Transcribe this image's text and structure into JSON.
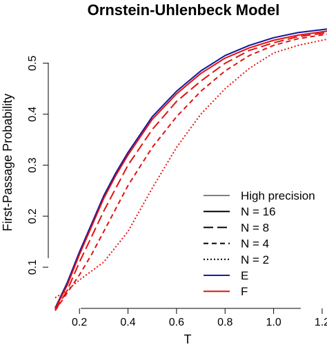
{
  "chart_data": {
    "type": "line",
    "title": "Ornstein-Uhlenbeck Model",
    "xlabel": "T",
    "ylabel": "First-Passage Probability",
    "xlim": [
      0.1,
      1.22
    ],
    "ylim": [
      0.03,
      0.57
    ],
    "x_ticks": [
      "0.2",
      "0.4",
      "0.6",
      "0.8",
      "1.0",
      "1.2"
    ],
    "y_ticks": [
      "0.1",
      "0.2",
      "0.3",
      "0.4",
      "0.5"
    ],
    "grid": false,
    "legend_position": "bottom-right",
    "legend": [
      {
        "label": "High precision",
        "color": "#808080",
        "dash": "solid"
      },
      {
        "label": "N = 16",
        "color": "#000000",
        "dash": "solid"
      },
      {
        "label": "N = 8",
        "color": "#000000",
        "dash": "longdash"
      },
      {
        "label": "N = 4",
        "color": "#000000",
        "dash": "dashed"
      },
      {
        "label": "N = 2",
        "color": "#000000",
        "dash": "dotted"
      },
      {
        "label": "E",
        "color": "#1a1aa0",
        "dash": "solid"
      },
      {
        "label": "F",
        "color": "#e01010",
        "dash": "solid"
      }
    ],
    "series": [
      {
        "color": "#808080",
        "dash": "solid",
        "points": [
          [
            0.1,
            0.02
          ],
          [
            0.15,
            0.07
          ],
          [
            0.2,
            0.13
          ],
          [
            0.25,
            0.185
          ],
          [
            0.3,
            0.24
          ],
          [
            0.35,
            0.285
          ],
          [
            0.4,
            0.325
          ],
          [
            0.5,
            0.395
          ],
          [
            0.6,
            0.445
          ],
          [
            0.7,
            0.485
          ],
          [
            0.8,
            0.515
          ],
          [
            0.9,
            0.535
          ],
          [
            1.0,
            0.55
          ],
          [
            1.1,
            0.56
          ],
          [
            1.22,
            0.567
          ]
        ]
      },
      {
        "color": "#1a1aa0",
        "dash": "solid",
        "points": [
          [
            0.1,
            0.02
          ],
          [
            0.15,
            0.07
          ],
          [
            0.2,
            0.13
          ],
          [
            0.25,
            0.185
          ],
          [
            0.3,
            0.24
          ],
          [
            0.35,
            0.285
          ],
          [
            0.4,
            0.325
          ],
          [
            0.5,
            0.395
          ],
          [
            0.6,
            0.445
          ],
          [
            0.7,
            0.485
          ],
          [
            0.8,
            0.515
          ],
          [
            0.9,
            0.535
          ],
          [
            1.0,
            0.55
          ],
          [
            1.1,
            0.56
          ],
          [
            1.22,
            0.567
          ]
        ]
      },
      {
        "color": "#e01010",
        "dash": "solid",
        "points": [
          [
            0.1,
            0.018
          ],
          [
            0.15,
            0.065
          ],
          [
            0.2,
            0.125
          ],
          [
            0.25,
            0.18
          ],
          [
            0.3,
            0.235
          ],
          [
            0.35,
            0.28
          ],
          [
            0.4,
            0.32
          ],
          [
            0.5,
            0.39
          ],
          [
            0.6,
            0.44
          ],
          [
            0.7,
            0.48
          ],
          [
            0.8,
            0.51
          ],
          [
            0.9,
            0.53
          ],
          [
            1.0,
            0.545
          ],
          [
            1.1,
            0.555
          ],
          [
            1.22,
            0.563
          ]
        ]
      },
      {
        "color": "#e01010",
        "dash": "longdash",
        "points": [
          [
            0.1,
            0.015
          ],
          [
            0.15,
            0.055
          ],
          [
            0.2,
            0.11
          ],
          [
            0.25,
            0.16
          ],
          [
            0.3,
            0.21
          ],
          [
            0.35,
            0.255
          ],
          [
            0.4,
            0.3
          ],
          [
            0.5,
            0.37
          ],
          [
            0.6,
            0.425
          ],
          [
            0.7,
            0.465
          ],
          [
            0.8,
            0.5
          ],
          [
            0.9,
            0.525
          ],
          [
            1.0,
            0.54
          ],
          [
            1.1,
            0.552
          ],
          [
            1.22,
            0.56
          ]
        ]
      },
      {
        "color": "#e01010",
        "dash": "dashed",
        "points": [
          [
            0.1,
            0.015
          ],
          [
            0.15,
            0.05
          ],
          [
            0.2,
            0.085
          ],
          [
            0.25,
            0.125
          ],
          [
            0.3,
            0.17
          ],
          [
            0.35,
            0.215
          ],
          [
            0.4,
            0.26
          ],
          [
            0.5,
            0.335
          ],
          [
            0.6,
            0.395
          ],
          [
            0.7,
            0.445
          ],
          [
            0.8,
            0.485
          ],
          [
            0.9,
            0.515
          ],
          [
            1.0,
            0.535
          ],
          [
            1.1,
            0.548
          ],
          [
            1.22,
            0.557
          ]
        ]
      },
      {
        "color": "#e01010",
        "dash": "dotted",
        "points": [
          [
            0.1,
            0.04
          ],
          [
            0.15,
            0.055
          ],
          [
            0.2,
            0.075
          ],
          [
            0.3,
            0.11
          ],
          [
            0.4,
            0.17
          ],
          [
            0.5,
            0.255
          ],
          [
            0.6,
            0.335
          ],
          [
            0.7,
            0.4
          ],
          [
            0.8,
            0.45
          ],
          [
            0.9,
            0.49
          ],
          [
            1.0,
            0.52
          ],
          [
            1.1,
            0.535
          ],
          [
            1.22,
            0.547
          ]
        ]
      }
    ]
  }
}
